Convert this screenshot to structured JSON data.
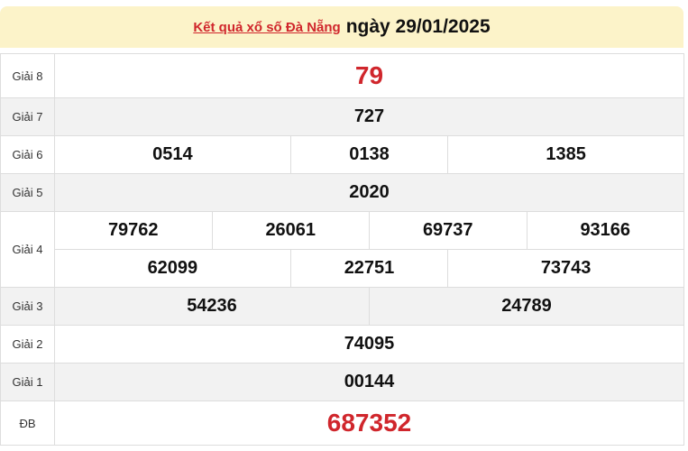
{
  "header": {
    "link": "Kết quả xổ số Đà Nẵng",
    "date": "ngày 29/01/2025"
  },
  "colors": {
    "accent_red": "#d0262c",
    "header_bg": "#fcf3c9"
  },
  "prizes": {
    "g8": {
      "label": "Giải 8",
      "values": [
        "79"
      ]
    },
    "g7": {
      "label": "Giải 7",
      "values": [
        "727"
      ]
    },
    "g6": {
      "label": "Giải 6",
      "values": [
        "0514",
        "0138",
        "1385"
      ]
    },
    "g5": {
      "label": "Giải 5",
      "values": [
        "2020"
      ]
    },
    "g4": {
      "label": "Giải 4",
      "values": [
        "79762",
        "26061",
        "69737",
        "93166",
        "62099",
        "22751",
        "73743"
      ]
    },
    "g3": {
      "label": "Giải 3",
      "values": [
        "54236",
        "24789"
      ]
    },
    "g2": {
      "label": "Giải 2",
      "values": [
        "74095"
      ]
    },
    "g1": {
      "label": "Giải 1",
      "values": [
        "00144"
      ]
    },
    "db": {
      "label": "ĐB",
      "values": [
        "687352"
      ]
    }
  }
}
